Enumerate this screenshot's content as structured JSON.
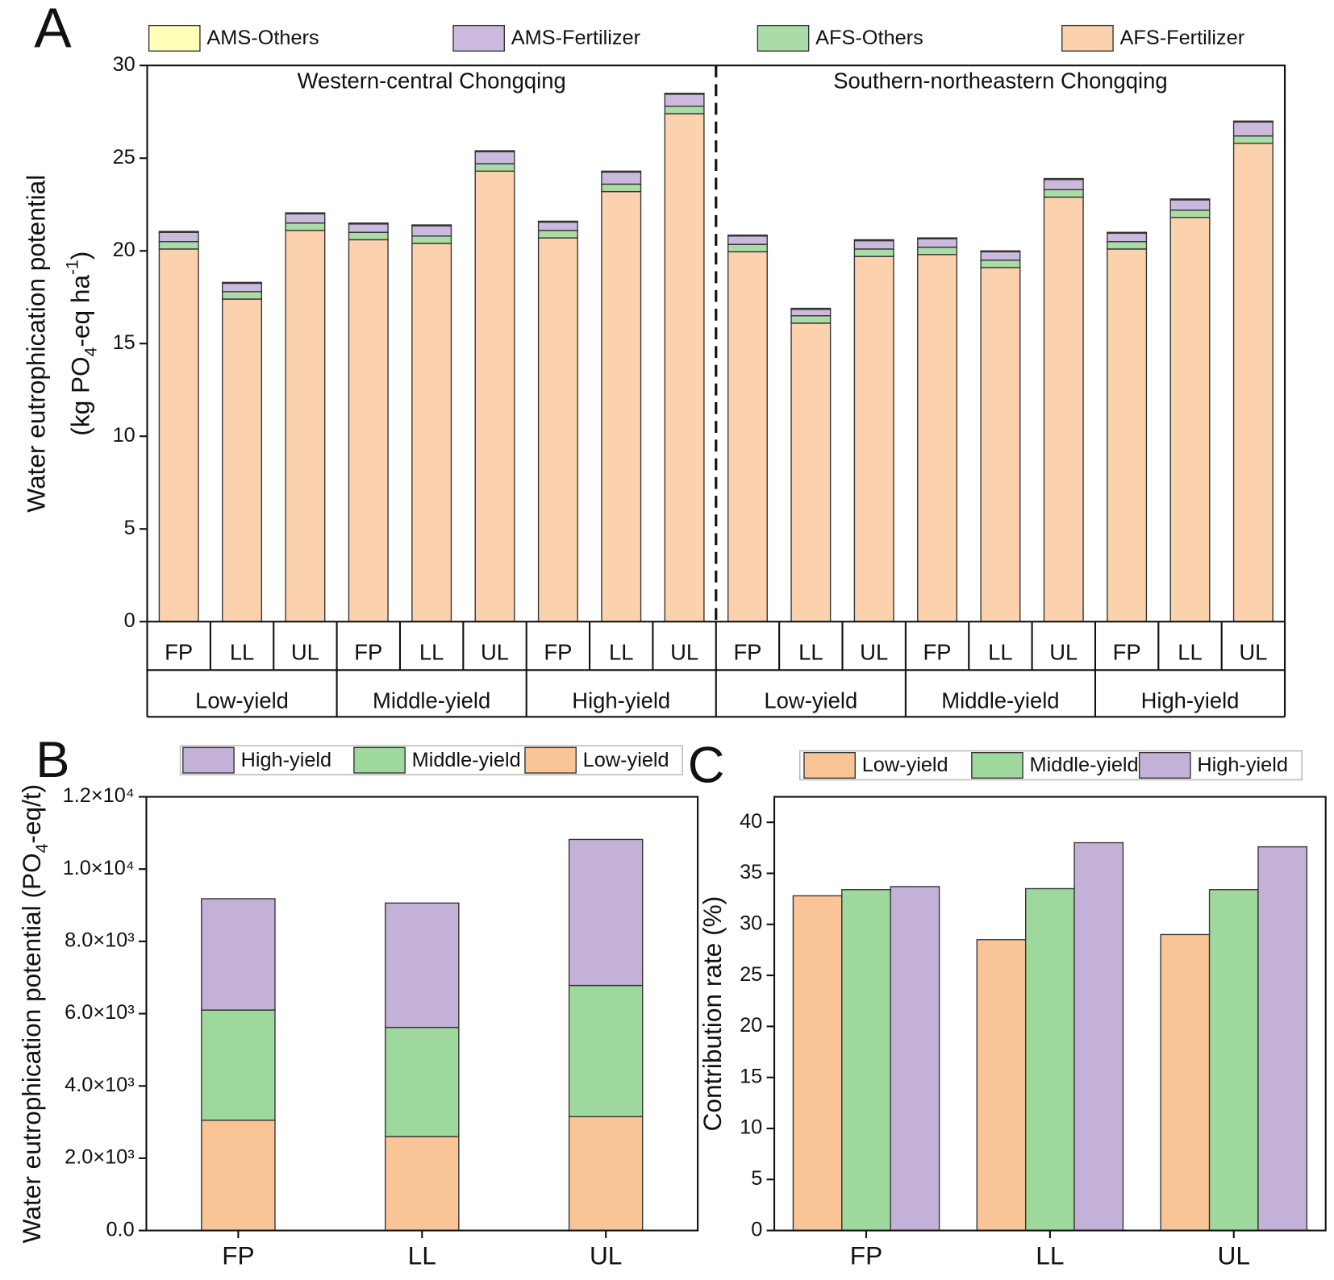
{
  "chart_data": [
    {
      "type": "stacked_bar",
      "panel_label": "A",
      "categories": [
        "FP",
        "LL",
        "UL",
        "FP",
        "LL",
        "UL",
        "FP",
        "LL",
        "UL",
        "FP",
        "LL",
        "UL",
        "FP",
        "LL",
        "UL",
        "FP",
        "LL",
        "UL"
      ],
      "groups": [
        "Low-yield",
        "Middle-yield",
        "High-yield",
        "Low-yield",
        "Middle-yield",
        "High-yield"
      ],
      "regions": [
        "Western-central Chongqing",
        "Southern-northeastern Chongqing"
      ],
      "ylabel": [
        [
          "Water eutrophication potential"
        ],
        [
          "(kg PO",
          "4",
          "-eq ha",
          "-1",
          ")"
        ]
      ],
      "ylim": [
        0,
        30
      ],
      "yticks": [
        0,
        5,
        10,
        15,
        20,
        25,
        30
      ],
      "series": [
        {
          "name": "AFS-Fertilizer",
          "color": "#fcd2ae",
          "values": [
            20.1,
            17.4,
            21.1,
            20.6,
            20.4,
            24.3,
            20.7,
            23.2,
            27.4,
            19.95,
            16.1,
            19.7,
            19.8,
            19.1,
            22.9,
            20.1,
            21.8,
            25.8
          ]
        },
        {
          "name": "AFS-Others",
          "color": "#a9dca6",
          "values": [
            0.4,
            0.4,
            0.4,
            0.4,
            0.4,
            0.4,
            0.4,
            0.4,
            0.4,
            0.4,
            0.4,
            0.4,
            0.4,
            0.4,
            0.4,
            0.4,
            0.4,
            0.4
          ]
        },
        {
          "name": "AMS-Fertilizer",
          "color": "#cbbade",
          "values": [
            0.5,
            0.45,
            0.5,
            0.45,
            0.55,
            0.65,
            0.45,
            0.65,
            0.65,
            0.45,
            0.35,
            0.45,
            0.45,
            0.45,
            0.55,
            0.45,
            0.55,
            0.75
          ]
        },
        {
          "name": "AMS-Others",
          "color": "#ffffb8",
          "values": [
            0.05,
            0.05,
            0.05,
            0.05,
            0.05,
            0.05,
            0.05,
            0.05,
            0.05,
            0.05,
            0.05,
            0.05,
            0.05,
            0.05,
            0.05,
            0.05,
            0.05,
            0.05
          ]
        }
      ]
    },
    {
      "type": "stacked_bar",
      "panel_label": "B",
      "categories": [
        "FP",
        "LL",
        "UL"
      ],
      "ylabel": [
        [
          "Water eutrophication potential (PO",
          "4",
          "-eq/t)"
        ]
      ],
      "ylim": [
        0,
        12000
      ],
      "yticks": [
        {
          "value": 0,
          "label": "0.0"
        },
        {
          "value": 2000,
          "label": "2.0×10³"
        },
        {
          "value": 4000,
          "label": "4.0×10³"
        },
        {
          "value": 6000,
          "label": "6.0×10³"
        },
        {
          "value": 8000,
          "label": "8.0×10³"
        },
        {
          "value": 10000,
          "label": "1.0×10⁴"
        },
        {
          "value": 12000,
          "label": "1.2×10⁴"
        }
      ],
      "series": [
        {
          "name": "Low-yield",
          "color": "#f9c597",
          "values": [
            3050,
            2600,
            3150
          ]
        },
        {
          "name": "Middle-yield",
          "color": "#9fd89d",
          "values": [
            3050,
            3020,
            3630
          ]
        },
        {
          "name": "High-yield",
          "color": "#c4b1d8",
          "values": [
            3080,
            3440,
            4040
          ]
        }
      ]
    },
    {
      "type": "grouped_bar",
      "panel_label": "C",
      "categories": [
        "FP",
        "LL",
        "UL"
      ],
      "ylabel": [
        [
          "Contribution rate (%)"
        ]
      ],
      "ylim": [
        0,
        42.5
      ],
      "yticks": [
        0,
        5,
        10,
        15,
        20,
        25,
        30,
        35,
        40
      ],
      "series": [
        {
          "name": "Low-yield",
          "color": "#f9c597",
          "values": [
            32.8,
            28.5,
            29.0
          ]
        },
        {
          "name": "Middle-yield",
          "color": "#9fd89d",
          "values": [
            33.4,
            33.5,
            33.4
          ]
        },
        {
          "name": "High-yield",
          "color": "#c4b1d8",
          "values": [
            33.7,
            38.0,
            37.6
          ]
        }
      ]
    }
  ]
}
